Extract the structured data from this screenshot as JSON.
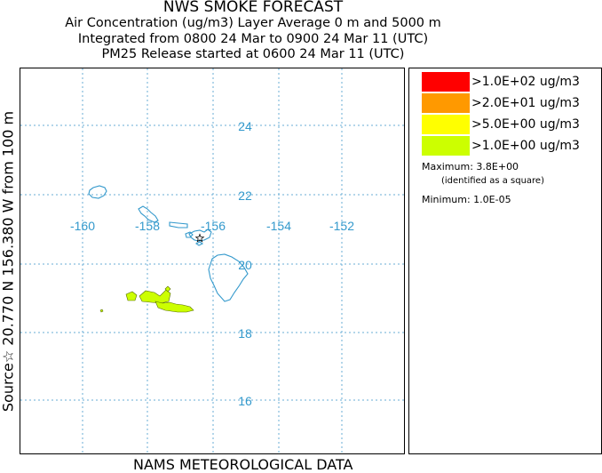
{
  "titles": {
    "line1": "NWS SMOKE FORECAST",
    "line2": "Air Concentration (ug/m3) Layer Average    0 m and  5000 m",
    "line3": "Integrated from 0800 24 Mar to 0900 24 Mar 11 (UTC)",
    "line4": "PM25 Release started at 0600 24 Mar 11 (UTC)"
  },
  "side_label": "Source☆ 20.770  N 156.380  W      from  100 m",
  "bottom_label": "NAMS METEOROLOGICAL DATA",
  "legend": {
    "items": [
      {
        "color": "#ff0000",
        "label": ">1.0E+02 ug/m3"
      },
      {
        "color": "#ff9900",
        "label": ">2.0E+01 ug/m3"
      },
      {
        "color": "#ffff00",
        "label": ">5.0E+00 ug/m3"
      },
      {
        "color": "#ccff00",
        "label": ">1.0E+00 ug/m3"
      }
    ],
    "maximum": "Maximum: 3.8E+00",
    "max_note": "(identified as a square)",
    "minimum": "Minimum: 1.0E-05"
  },
  "map": {
    "lon_labels": [
      "-160",
      "-158",
      "-156",
      "-154",
      "-152"
    ],
    "lat_labels": [
      "24",
      "22",
      "20",
      "18",
      "16"
    ],
    "gridline_color": "#6aaed6",
    "coast_color": "#3399cc",
    "plume_color": "#ccff00",
    "source_marker": "star"
  }
}
